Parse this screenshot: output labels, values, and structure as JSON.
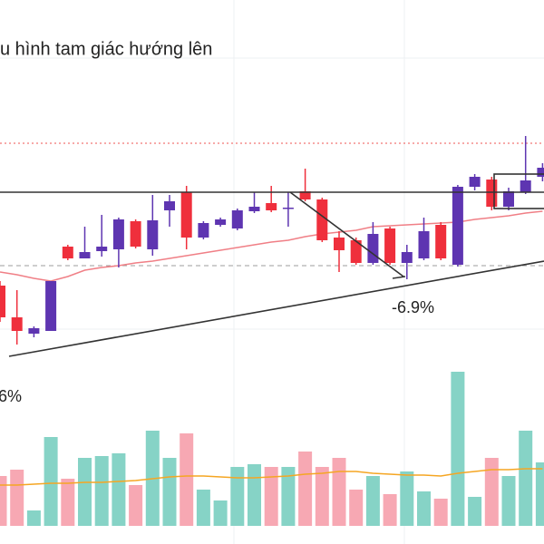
{
  "chart_data": {
    "type": "candlestick",
    "title": "u hình tam giác hướng lên",
    "annotations": [
      "-6.9%",
      "6%"
    ],
    "ylim": [
      0,
      270
    ],
    "up_color": "#5e35b1",
    "down_color": "#ef2f3c",
    "open": [
      85,
      50,
      32,
      35,
      128,
      115,
      123,
      125,
      156,
      125,
      168,
      188,
      138,
      152,
      148,
      167,
      176,
      170,
      189,
      180,
      138,
      135,
      110,
      148,
      110,
      115,
      152,
      108,
      194,
      202,
      172,
      188,
      205
    ],
    "high": [
      90,
      80,
      40,
      90,
      130,
      150,
      163,
      160,
      158,
      185,
      185,
      195,
      156,
      160,
      170,
      188,
      195,
      188,
      214,
      182,
      145,
      138,
      155,
      150,
      130,
      160,
      155,
      196,
      208,
      205,
      193,
      250,
      220
    ],
    "low": [
      45,
      20,
      28,
      35,
      113,
      115,
      117,
      105,
      126,
      118,
      150,
      125,
      136,
      150,
      146,
      165,
      166,
      150,
      178,
      133,
      100,
      108,
      108,
      108,
      92,
      113,
      113,
      106,
      190,
      168,
      168,
      186,
      200
    ],
    "close": [
      50,
      35,
      38,
      90,
      115,
      122,
      128,
      158,
      128,
      157,
      178,
      138,
      154,
      158,
      168,
      172,
      168,
      171,
      180,
      135,
      124,
      110,
      142,
      110,
      122,
      145,
      115,
      194,
      205,
      172,
      189,
      201,
      215
    ],
    "ma": {
      "color": "#f07f86",
      "values": [
        100,
        97,
        93,
        90,
        95,
        102,
        105,
        107,
        110,
        112,
        115,
        118,
        121,
        124,
        127,
        130,
        133,
        135,
        139,
        142,
        144,
        146,
        150,
        151,
        152,
        153,
        154,
        155,
        158,
        160,
        162,
        165,
        167
      ]
    },
    "volume": {
      "ylim": [
        0,
        175
      ],
      "up_color": "#86d3c6",
      "down_color": "#f7a8b3",
      "values": [
        55,
        62,
        17,
        98,
        52,
        75,
        77,
        80,
        45,
        105,
        75,
        102,
        40,
        28,
        65,
        68,
        65,
        65,
        82,
        65,
        75,
        40,
        55,
        35,
        60,
        38,
        30,
        170,
        32,
        75,
        55,
        105,
        70
      ],
      "ma": {
        "color": "#f5a623",
        "values": [
          45,
          45,
          46,
          47,
          47,
          48,
          48,
          49,
          50,
          52,
          54,
          55,
          55,
          54,
          53,
          53,
          54,
          55,
          57,
          58,
          60,
          60,
          58,
          57,
          56,
          56,
          55,
          58,
          60,
          62,
          62,
          63,
          63
        ]
      }
    }
  }
}
